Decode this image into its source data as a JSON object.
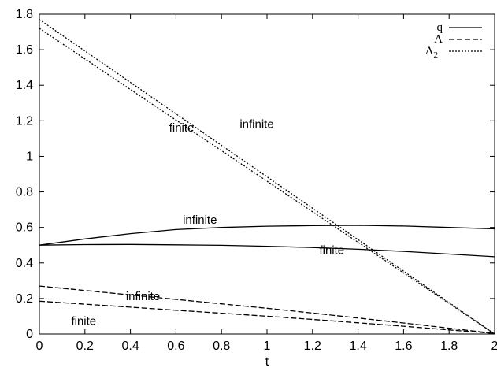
{
  "chart_data": {
    "type": "line",
    "title": "",
    "xlabel": "t",
    "ylabel": "",
    "xlim": [
      0,
      2
    ],
    "ylim": [
      0,
      1.8
    ],
    "x_ticks": [
      "0",
      "0.2",
      "0.4",
      "0.6",
      "0.8",
      "1",
      "1.2",
      "1.4",
      "1.6",
      "1.8",
      "2"
    ],
    "x_tick_values": [
      0,
      0.2,
      0.4,
      0.6,
      0.8,
      1.0,
      1.2,
      1.4,
      1.6,
      1.8,
      2.0
    ],
    "y_ticks": [
      "0",
      "0.2",
      "0.4",
      "0.6",
      "0.8",
      "1",
      "1.2",
      "1.4",
      "1.6",
      "1.8"
    ],
    "y_tick_values": [
      0,
      0.2,
      0.4,
      0.6,
      0.8,
      1.0,
      1.2,
      1.4,
      1.6,
      1.8
    ],
    "grid": false,
    "legend_position": "top-right",
    "legend": [
      {
        "label": "q",
        "sub": "",
        "dash": "solid"
      },
      {
        "label": "Λ",
        "sub": "",
        "dash": "dashed"
      },
      {
        "label": "Λ",
        "sub": "2",
        "dash": "dotted"
      }
    ],
    "x": [
      0,
      0.2,
      0.4,
      0.6,
      0.8,
      1.0,
      1.2,
      1.4,
      1.6,
      1.8,
      2.0
    ],
    "series": [
      {
        "legend": "q",
        "variant": "infinite",
        "dash": "solid",
        "values": [
          0.5,
          0.535,
          0.565,
          0.588,
          0.6,
          0.607,
          0.61,
          0.612,
          0.608,
          0.6,
          0.592
        ]
      },
      {
        "legend": "q",
        "variant": "finite",
        "dash": "solid",
        "values": [
          0.5,
          0.503,
          0.504,
          0.502,
          0.499,
          0.494,
          0.487,
          0.477,
          0.465,
          0.45,
          0.435
        ]
      },
      {
        "legend": "Λ",
        "variant": "infinite",
        "dash": "dashed",
        "values": [
          0.27,
          0.245,
          0.22,
          0.195,
          0.17,
          0.145,
          0.118,
          0.09,
          0.062,
          0.033,
          0.003
        ]
      },
      {
        "legend": "Λ",
        "variant": "finite",
        "dash": "dashed",
        "values": [
          0.185,
          0.168,
          0.151,
          0.134,
          0.117,
          0.1,
          0.082,
          0.063,
          0.044,
          0.023,
          0.003
        ]
      },
      {
        "legend": "Λ2",
        "variant": "infinite",
        "dash": "dotted",
        "values": [
          1.77,
          1.593,
          1.416,
          1.239,
          1.062,
          0.885,
          0.708,
          0.531,
          0.354,
          0.177,
          0.0
        ]
      },
      {
        "legend": "Λ2",
        "variant": "finite",
        "dash": "dotted",
        "values": [
          1.72,
          1.548,
          1.376,
          1.204,
          1.032,
          0.86,
          0.688,
          0.516,
          0.344,
          0.172,
          0.0
        ]
      }
    ],
    "annotations": [
      {
        "text": "infinite",
        "x": 0.88,
        "y": 1.16
      },
      {
        "text": "finite",
        "x": 0.57,
        "y": 1.14
      },
      {
        "text": "infinite",
        "x": 0.63,
        "y": 0.62
      },
      {
        "text": "finite",
        "x": 1.23,
        "y": 0.45
      },
      {
        "text": "infinite",
        "x": 0.38,
        "y": 0.19
      },
      {
        "text": "finite",
        "x": 0.14,
        "y": 0.05
      }
    ]
  }
}
